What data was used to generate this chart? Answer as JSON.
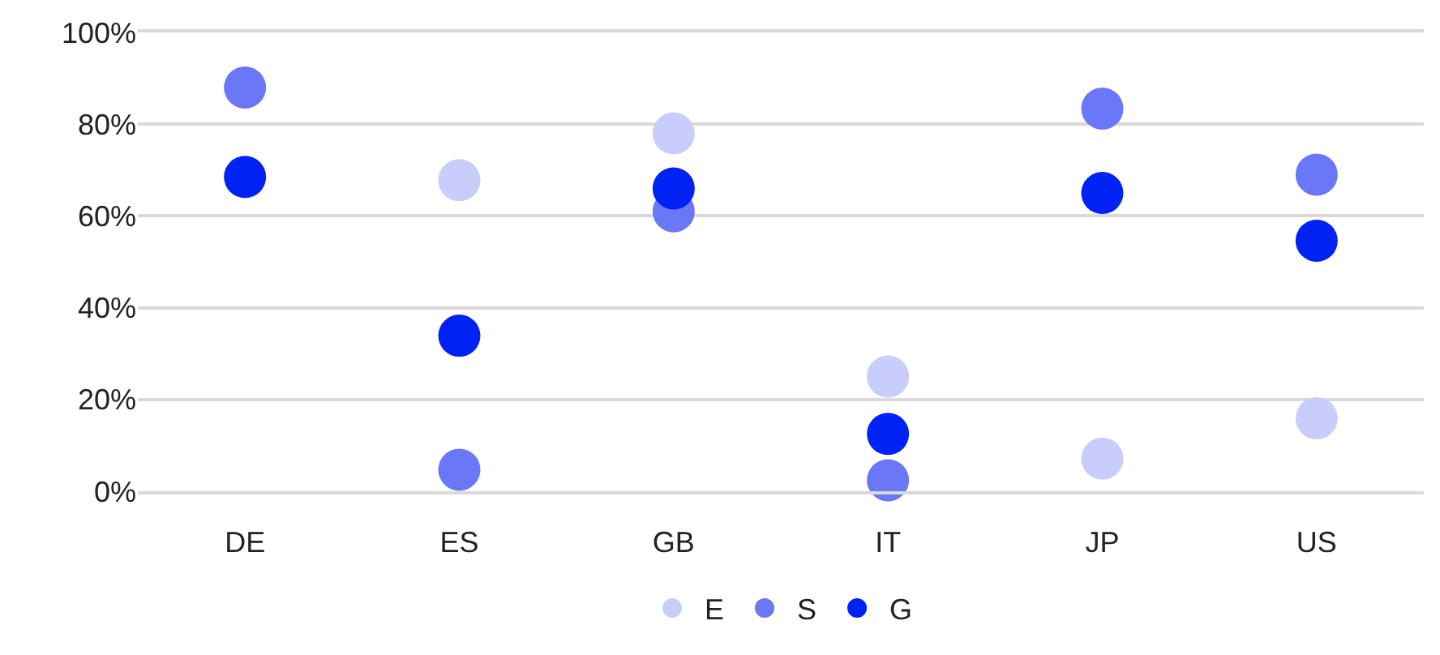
{
  "chart_data": {
    "type": "scatter",
    "categories": [
      "DE",
      "ES",
      "GB",
      "IT",
      "JP",
      "US"
    ],
    "series": [
      {
        "name": "E",
        "color": "#c9cdfb",
        "values": [
          null,
          67.8,
          78,
          25,
          7.1,
          15.9
        ]
      },
      {
        "name": "S",
        "color": "#6a77f6",
        "values": [
          88,
          4.7,
          61,
          2.4,
          83.4,
          69
        ]
      },
      {
        "name": "G",
        "color": "#0022f5",
        "values": [
          68.5,
          33.9,
          66,
          12.5,
          65,
          54.6
        ]
      }
    ],
    "ylim": [
      0,
      100
    ],
    "yticks": [
      {
        "value": 0,
        "label": "0%"
      },
      {
        "value": 20,
        "label": "20%"
      },
      {
        "value": 40,
        "label": "40%"
      },
      {
        "value": 60,
        "label": "60%"
      },
      {
        "value": 80,
        "label": "80%"
      },
      {
        "value": 100,
        "label": "100%"
      }
    ],
    "grid": "y",
    "legend": "bottom",
    "marker": "circle"
  }
}
